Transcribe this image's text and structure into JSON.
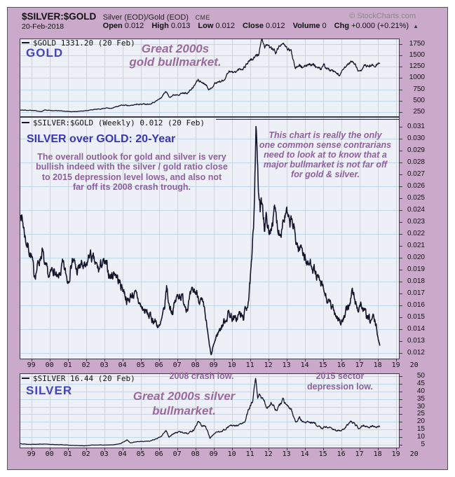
{
  "header": {
    "symbol": "$SILVER:$GOLD",
    "description": "Silver (EOD)/Gold (EOD)",
    "exchange": "CME",
    "copyright": "© StockCharts.com",
    "date": "20-Feb-2018",
    "quote": [
      {
        "label": "Open",
        "value": "0.012"
      },
      {
        "label": "High",
        "value": "0.013"
      },
      {
        "label": "Low",
        "value": "0.012"
      },
      {
        "label": "Close",
        "value": "0.012"
      },
      {
        "label": "Volume",
        "value": "0"
      },
      {
        "label": "Chg",
        "value": "+0.000 (+0.21%)"
      }
    ],
    "change_arrow": "▲"
  },
  "colors": {
    "frame": "#CBA9CB",
    "plot_bg": "#EDF1F7",
    "grid": "#C2D8E8",
    "line": "#14142A",
    "panel_border": "#3A3A44",
    "blue_label": "#4444BE",
    "blue_title": "#3B35B5",
    "purple_annotation": "#8E5F9E"
  },
  "panels": {
    "gold": {
      "legend": "$GOLD 1331.20 (20 Feb)",
      "label": "GOLD",
      "annotation_lines": [
        "Great 2000s",
        "gold bullmarket."
      ]
    },
    "ratio": {
      "legend": "$SILVER:$GOLD (Weekly) 0.012 (20 Feb)",
      "title": "SILVER over GOLD: 20-Year",
      "paragraph_lines": [
        "The overall outlook for gold and silver is very",
        "bullish indeed with the silver / gold ratio close",
        "to 2015 depression level lows, and also not",
        "far off its 2008 crash trough."
      ],
      "note_lines": [
        "This chart is really the only",
        "one common sense contrarians",
        "need to look at to know that a",
        "major bullmarket is not far off",
        "for gold & silver."
      ]
    },
    "silver": {
      "legend": "$SILVER 16.44 (20 Feb)",
      "label": "SILVER",
      "crash_label": "2008 crash low.",
      "depression_lines": [
        "2015 sector",
        "depression low."
      ],
      "bull_lines": [
        "Great 2000s silver",
        "bullmarket."
      ]
    }
  },
  "x_axis": {
    "years": [
      1999,
      2000,
      2001,
      2002,
      2003,
      2004,
      2005,
      2006,
      2007,
      2008,
      2009,
      2010,
      2011,
      2012,
      2013,
      2014,
      2015,
      2016,
      2017,
      2018,
      2019,
      2020
    ],
    "labels": [
      "99",
      "00",
      "01",
      "02",
      "03",
      "04",
      "05",
      "06",
      "07",
      "08",
      "09",
      "10",
      "11",
      "12",
      "13",
      "14",
      "15",
      "16",
      "17",
      "18",
      "19",
      "20"
    ]
  },
  "chart_data": [
    {
      "id": "gold",
      "type": "line",
      "title": "GOLD ($GOLD, weekly close, USD)",
      "last_value": 1331.2,
      "x_range": [
        1998.42,
        2018.13
      ],
      "y_domain": [
        142,
        1873
      ],
      "y_ticks": [
        250,
        500,
        750,
        1000,
        1250,
        1500,
        1750
      ],
      "grid_y": [
        250,
        500,
        750,
        1000,
        1250,
        1500,
        1750
      ],
      "tick_decimals": 0,
      "line_color": "#14142A",
      "anchors": [
        [
          1998.42,
          293
        ],
        [
          1998.8,
          291
        ],
        [
          1999.2,
          283
        ],
        [
          1999.55,
          258
        ],
        [
          1999.75,
          300
        ],
        [
          1999.9,
          288
        ],
        [
          2000.2,
          283
        ],
        [
          2000.6,
          277
        ],
        [
          2001.0,
          264
        ],
        [
          2001.3,
          258
        ],
        [
          2001.7,
          272
        ],
        [
          2002.0,
          281
        ],
        [
          2002.4,
          305
        ],
        [
          2002.8,
          318
        ],
        [
          2003.1,
          345
        ],
        [
          2003.3,
          330
        ],
        [
          2003.6,
          360
        ],
        [
          2003.95,
          398
        ],
        [
          2004.25,
          405
        ],
        [
          2004.45,
          388
        ],
        [
          2004.8,
          430
        ],
        [
          2005.1,
          425
        ],
        [
          2005.5,
          435
        ],
        [
          2005.85,
          495
        ],
        [
          2006.1,
          555
        ],
        [
          2006.38,
          715
        ],
        [
          2006.55,
          590
        ],
        [
          2006.8,
          625
        ],
        [
          2007.0,
          645
        ],
        [
          2007.35,
          665
        ],
        [
          2007.6,
          680
        ],
        [
          2007.85,
          780
        ],
        [
          2008.15,
          965
        ],
        [
          2008.3,
          915
        ],
        [
          2008.55,
          880
        ],
        [
          2008.8,
          740
        ],
        [
          2009.05,
          880
        ],
        [
          2009.3,
          920
        ],
        [
          2009.55,
          950
        ],
        [
          2009.85,
          1170
        ],
        [
          2010.1,
          1110
        ],
        [
          2010.4,
          1190
        ],
        [
          2010.65,
          1230
        ],
        [
          2010.95,
          1390
        ],
        [
          2011.2,
          1430
        ],
        [
          2011.45,
          1510
        ],
        [
          2011.65,
          1880
        ],
        [
          2011.8,
          1640
        ],
        [
          2011.95,
          1740
        ],
        [
          2012.15,
          1660
        ],
        [
          2012.4,
          1580
        ],
        [
          2012.75,
          1770
        ],
        [
          2013.0,
          1665
        ],
        [
          2013.25,
          1590
        ],
        [
          2013.5,
          1235
        ],
        [
          2013.7,
          1320
        ],
        [
          2013.95,
          1210
        ],
        [
          2014.2,
          1330
        ],
        [
          2014.5,
          1290
        ],
        [
          2014.85,
          1180
        ],
        [
          2015.05,
          1280
        ],
        [
          2015.3,
          1190
        ],
        [
          2015.6,
          1120
        ],
        [
          2015.95,
          1065
        ],
        [
          2016.2,
          1230
        ],
        [
          2016.5,
          1360
        ],
        [
          2016.75,
          1320
        ],
        [
          2016.95,
          1135
        ],
        [
          2017.2,
          1245
        ],
        [
          2017.45,
          1265
        ],
        [
          2017.7,
          1280
        ],
        [
          2017.85,
          1295
        ],
        [
          2018.0,
          1340
        ],
        [
          2018.13,
          1331
        ]
      ]
    },
    {
      "id": "ratio",
      "type": "line",
      "title": "SILVER over GOLD ratio ($SILVER:$GOLD, weekly)",
      "last_value": 0.012,
      "x_range": [
        1998.42,
        2018.13
      ],
      "y_domain": [
        0.0115,
        0.0318
      ],
      "y_ticks": [
        0.012,
        0.013,
        0.014,
        0.015,
        0.016,
        0.017,
        0.018,
        0.019,
        0.02,
        0.021,
        0.022,
        0.023,
        0.024,
        0.025,
        0.026,
        0.027,
        0.028,
        0.029,
        0.03,
        0.031
      ],
      "grid_y": [
        0.012,
        0.014,
        0.016,
        0.018,
        0.02,
        0.022,
        0.024,
        0.026,
        0.028,
        0.03
      ],
      "tick_decimals": 3,
      "line_color": "#14142A",
      "peak_line": {
        "value": 0.0316,
        "from_year": 2009.13,
        "to_year": 2019.2
      },
      "anchors": [
        [
          1998.42,
          0.024
        ],
        [
          1998.7,
          0.0215
        ],
        [
          1999.0,
          0.0202
        ],
        [
          1999.15,
          0.0185
        ],
        [
          1999.4,
          0.0196
        ],
        [
          1999.6,
          0.0207
        ],
        [
          1999.75,
          0.019
        ],
        [
          2000.0,
          0.0182
        ],
        [
          2000.2,
          0.0192
        ],
        [
          2000.45,
          0.0179
        ],
        [
          2000.7,
          0.0193
        ],
        [
          2001.0,
          0.0181
        ],
        [
          2001.25,
          0.02
        ],
        [
          2001.5,
          0.0188
        ],
        [
          2001.75,
          0.0194
        ],
        [
          2002.0,
          0.0189
        ],
        [
          2002.2,
          0.0204
        ],
        [
          2002.45,
          0.0195
        ],
        [
          2002.7,
          0.0189
        ],
        [
          2002.9,
          0.0196
        ],
        [
          2003.1,
          0.0192
        ],
        [
          2003.35,
          0.0184
        ],
        [
          2003.6,
          0.0189
        ],
        [
          2003.8,
          0.018
        ],
        [
          2004.05,
          0.0174
        ],
        [
          2004.3,
          0.0163
        ],
        [
          2004.55,
          0.0171
        ],
        [
          2004.8,
          0.0166
        ],
        [
          2005.05,
          0.0158
        ],
        [
          2005.3,
          0.0154
        ],
        [
          2005.55,
          0.015
        ],
        [
          2005.8,
          0.0147
        ],
        [
          2006.05,
          0.0141
        ],
        [
          2006.3,
          0.0155
        ],
        [
          2006.42,
          0.0176
        ],
        [
          2006.55,
          0.0161
        ],
        [
          2006.75,
          0.0156
        ],
        [
          2006.95,
          0.0165
        ],
        [
          2007.15,
          0.0171
        ],
        [
          2007.35,
          0.0164
        ],
        [
          2007.55,
          0.016
        ],
        [
          2007.75,
          0.0167
        ],
        [
          2007.95,
          0.0172
        ],
        [
          2008.15,
          0.0169
        ],
        [
          2008.35,
          0.0162
        ],
        [
          2008.55,
          0.015
        ],
        [
          2008.75,
          0.0128
        ],
        [
          2008.87,
          0.0118
        ],
        [
          2009.0,
          0.0127
        ],
        [
          2009.2,
          0.0136
        ],
        [
          2009.4,
          0.0142
        ],
        [
          2009.6,
          0.0147
        ],
        [
          2009.8,
          0.0154
        ],
        [
          2010.0,
          0.0151
        ],
        [
          2010.2,
          0.0147
        ],
        [
          2010.4,
          0.0153
        ],
        [
          2010.6,
          0.0149
        ],
        [
          2010.8,
          0.0158
        ],
        [
          2010.95,
          0.017
        ],
        [
          2011.1,
          0.0196
        ],
        [
          2011.2,
          0.0228
        ],
        [
          2011.33,
          0.0316
        ],
        [
          2011.45,
          0.0258
        ],
        [
          2011.55,
          0.0238
        ],
        [
          2011.68,
          0.0248
        ],
        [
          2011.8,
          0.0226
        ],
        [
          2011.92,
          0.0235
        ],
        [
          2012.05,
          0.0216
        ],
        [
          2012.2,
          0.0231
        ],
        [
          2012.35,
          0.0239
        ],
        [
          2012.5,
          0.0228
        ],
        [
          2012.65,
          0.0222
        ],
        [
          2012.8,
          0.0233
        ],
        [
          2013.0,
          0.0237
        ],
        [
          2013.15,
          0.0226
        ],
        [
          2013.3,
          0.0231
        ],
        [
          2013.5,
          0.0216
        ],
        [
          2013.7,
          0.0206
        ],
        [
          2013.85,
          0.0211
        ],
        [
          2014.0,
          0.0201
        ],
        [
          2014.2,
          0.0193
        ],
        [
          2014.4,
          0.0197
        ],
        [
          2014.6,
          0.0186
        ],
        [
          2014.8,
          0.0179
        ],
        [
          2015.05,
          0.0171
        ],
        [
          2015.3,
          0.0162
        ],
        [
          2015.55,
          0.0156
        ],
        [
          2015.8,
          0.0152
        ],
        [
          2016.0,
          0.0146
        ],
        [
          2016.2,
          0.015
        ],
        [
          2016.4,
          0.0159
        ],
        [
          2016.6,
          0.0172
        ],
        [
          2016.75,
          0.0164
        ],
        [
          2016.9,
          0.0157
        ],
        [
          2017.05,
          0.0162
        ],
        [
          2017.25,
          0.0155
        ],
        [
          2017.45,
          0.0149
        ],
        [
          2017.6,
          0.0146
        ],
        [
          2017.75,
          0.015
        ],
        [
          2017.9,
          0.0143
        ],
        [
          2018.02,
          0.0134
        ],
        [
          2018.13,
          0.0125
        ]
      ]
    },
    {
      "id": "silver",
      "type": "line",
      "title": "SILVER ($SILVER, weekly close, USD)",
      "last_value": 16.44,
      "x_range": [
        1998.42,
        2018.13
      ],
      "y_domain": [
        2.5,
        52
      ],
      "y_ticks": [
        5,
        10,
        15,
        20,
        25,
        30,
        35,
        40,
        45,
        50
      ],
      "grid_y": [
        5,
        10,
        15,
        20,
        25,
        30,
        35,
        40,
        45,
        50
      ],
      "tick_decimals": 0,
      "line_color": "#14142A",
      "anchors": [
        [
          1998.42,
          5.6
        ],
        [
          1998.8,
          5.1
        ],
        [
          1999.2,
          5.2
        ],
        [
          1999.6,
          5.3
        ],
        [
          2000.0,
          5.1
        ],
        [
          2000.4,
          4.9
        ],
        [
          2000.8,
          4.8
        ],
        [
          2001.2,
          4.4
        ],
        [
          2001.6,
          4.3
        ],
        [
          2001.9,
          4.1
        ],
        [
          2002.3,
          4.6
        ],
        [
          2002.7,
          4.7
        ],
        [
          2003.1,
          4.6
        ],
        [
          2003.5,
          4.8
        ],
        [
          2003.9,
          5.6
        ],
        [
          2004.25,
          8.1
        ],
        [
          2004.45,
          5.9
        ],
        [
          2004.8,
          7.0
        ],
        [
          2005.1,
          7.0
        ],
        [
          2005.5,
          7.3
        ],
        [
          2005.9,
          8.8
        ],
        [
          2006.15,
          10.5
        ],
        [
          2006.38,
          14.4
        ],
        [
          2006.55,
          10.2
        ],
        [
          2006.8,
          12.0
        ],
        [
          2007.05,
          13.3
        ],
        [
          2007.3,
          13.0
        ],
        [
          2007.6,
          12.6
        ],
        [
          2007.9,
          14.5
        ],
        [
          2008.15,
          20.2
        ],
        [
          2008.35,
          17.5
        ],
        [
          2008.55,
          17.0
        ],
        [
          2008.8,
          9.3
        ],
        [
          2009.05,
          12.5
        ],
        [
          2009.3,
          13.5
        ],
        [
          2009.6,
          14.8
        ],
        [
          2009.9,
          17.5
        ],
        [
          2010.15,
          17.0
        ],
        [
          2010.45,
          18.3
        ],
        [
          2010.7,
          19.5
        ],
        [
          2010.95,
          28.5
        ],
        [
          2011.15,
          34.0
        ],
        [
          2011.3,
          48.0
        ],
        [
          2011.42,
          34.5
        ],
        [
          2011.55,
          38.5
        ],
        [
          2011.75,
          33.5
        ],
        [
          2011.95,
          29.0
        ],
        [
          2012.15,
          33.0
        ],
        [
          2012.45,
          27.5
        ],
        [
          2012.8,
          34.3
        ],
        [
          2013.0,
          30.5
        ],
        [
          2013.25,
          28.5
        ],
        [
          2013.5,
          19.8
        ],
        [
          2013.7,
          22.5
        ],
        [
          2013.95,
          19.5
        ],
        [
          2014.25,
          20.0
        ],
        [
          2014.55,
          19.0
        ],
        [
          2014.9,
          15.7
        ],
        [
          2015.15,
          16.8
        ],
        [
          2015.45,
          15.8
        ],
        [
          2015.7,
          14.6
        ],
        [
          2015.95,
          13.9
        ],
        [
          2016.2,
          15.3
        ],
        [
          2016.5,
          20.2
        ],
        [
          2016.75,
          18.5
        ],
        [
          2016.95,
          16.0
        ],
        [
          2017.2,
          18.0
        ],
        [
          2017.45,
          16.3
        ],
        [
          2017.7,
          17.0
        ],
        [
          2017.9,
          16.2
        ],
        [
          2018.05,
          17.2
        ],
        [
          2018.13,
          16.44
        ]
      ]
    }
  ]
}
